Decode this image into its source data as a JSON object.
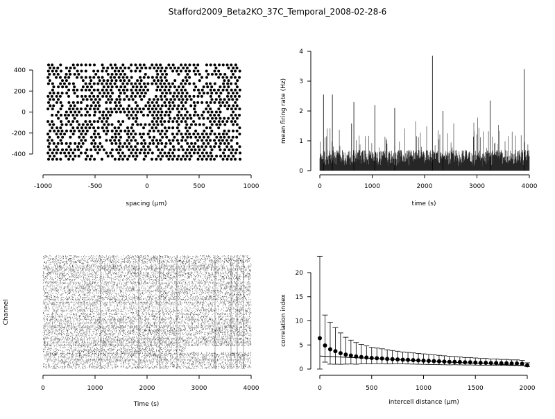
{
  "title": "Stafford2009_Beta2KO_37C_Temporal_2008-02-28-6",
  "chart_data": [
    {
      "type": "scatter",
      "xlabel": "spacing (µm)",
      "ylabel": "",
      "xlim": [
        -1000,
        1000
      ],
      "ylim": [
        -480,
        480
      ],
      "xticks": [
        -1000,
        -500,
        0,
        500,
        1000
      ],
      "yticks": [
        -400,
        -200,
        0,
        200,
        400
      ],
      "grid": false,
      "description_rows_y": [
        450,
        420,
        390,
        360,
        330,
        300,
        270,
        240,
        210,
        180,
        150,
        120,
        90,
        60,
        30,
        0,
        -30,
        -60,
        -90,
        -120,
        -150,
        -180,
        -210,
        -240,
        -270,
        -300,
        -330,
        -360,
        -390,
        -420,
        -450
      ],
      "x_range_per_row": [
        -950,
        900
      ],
      "x_step": 60
    },
    {
      "type": "line",
      "xlabel": "time (s)",
      "ylabel": "mean firing rate (Hz)",
      "xlim": [
        0,
        4000
      ],
      "ylim": [
        0,
        4
      ],
      "xticks": [
        0,
        1000,
        2000,
        3000,
        4000
      ],
      "yticks": [
        0,
        1,
        2,
        3,
        4
      ],
      "peaks": [
        {
          "x": 70,
          "y": 2.55
        },
        {
          "x": 240,
          "y": 2.55
        },
        {
          "x": 650,
          "y": 2.3
        },
        {
          "x": 1050,
          "y": 2.2
        },
        {
          "x": 1430,
          "y": 2.1
        },
        {
          "x": 2150,
          "y": 3.85
        },
        {
          "x": 2350,
          "y": 2.0
        },
        {
          "x": 3250,
          "y": 2.35
        },
        {
          "x": 3900,
          "y": 3.4
        }
      ]
    },
    {
      "type": "raster",
      "xlabel": "Time (s)",
      "ylabel": "Channel",
      "xlim": [
        0,
        4000
      ],
      "xticks": [
        0,
        1000,
        2000,
        3000,
        4000
      ],
      "channels": 120
    },
    {
      "type": "scatter",
      "xlabel": "intercell distance (µm)",
      "ylabel": "correlation index",
      "xlim": [
        0,
        2000
      ],
      "ylim": [
        0,
        23
      ],
      "xticks": [
        0,
        500,
        1000,
        1500,
        2000
      ],
      "yticks": [
        0,
        5,
        10,
        15,
        20
      ],
      "x": [
        0,
        50,
        100,
        150,
        200,
        250,
        300,
        350,
        400,
        450,
        500,
        550,
        600,
        650,
        700,
        750,
        800,
        850,
        900,
        950,
        1000,
        1050,
        1100,
        1150,
        1200,
        1250,
        1300,
        1350,
        1400,
        1450,
        1500,
        1550,
        1600,
        1650,
        1700,
        1750,
        1800,
        1850,
        1900,
        1950,
        2000
      ],
      "y": [
        6.4,
        4.9,
        4.1,
        3.7,
        3.3,
        3.0,
        2.8,
        2.6,
        2.5,
        2.4,
        2.3,
        2.25,
        2.2,
        2.1,
        2.05,
        2.0,
        1.95,
        1.9,
        1.85,
        1.8,
        1.75,
        1.7,
        1.65,
        1.6,
        1.55,
        1.5,
        1.5,
        1.45,
        1.4,
        1.4,
        1.35,
        1.3,
        1.3,
        1.25,
        1.25,
        1.2,
        1.2,
        1.15,
        1.15,
        1.1,
        0.8
      ],
      "err": [
        17.0,
        6.3,
        5.6,
        4.9,
        4.2,
        3.6,
        3.2,
        2.9,
        2.6,
        2.4,
        2.2,
        2.1,
        2.0,
        1.9,
        1.8,
        1.7,
        1.6,
        1.55,
        1.5,
        1.45,
        1.4,
        1.35,
        1.3,
        1.25,
        1.2,
        1.15,
        1.1,
        1.05,
        1.0,
        1.0,
        0.95,
        0.9,
        0.9,
        0.85,
        0.85,
        0.8,
        0.8,
        0.75,
        0.75,
        0.7,
        0.5
      ],
      "fit_line": {
        "x": [
          0,
          2000
        ],
        "y": [
          2.7,
          0.7
        ]
      }
    }
  ]
}
